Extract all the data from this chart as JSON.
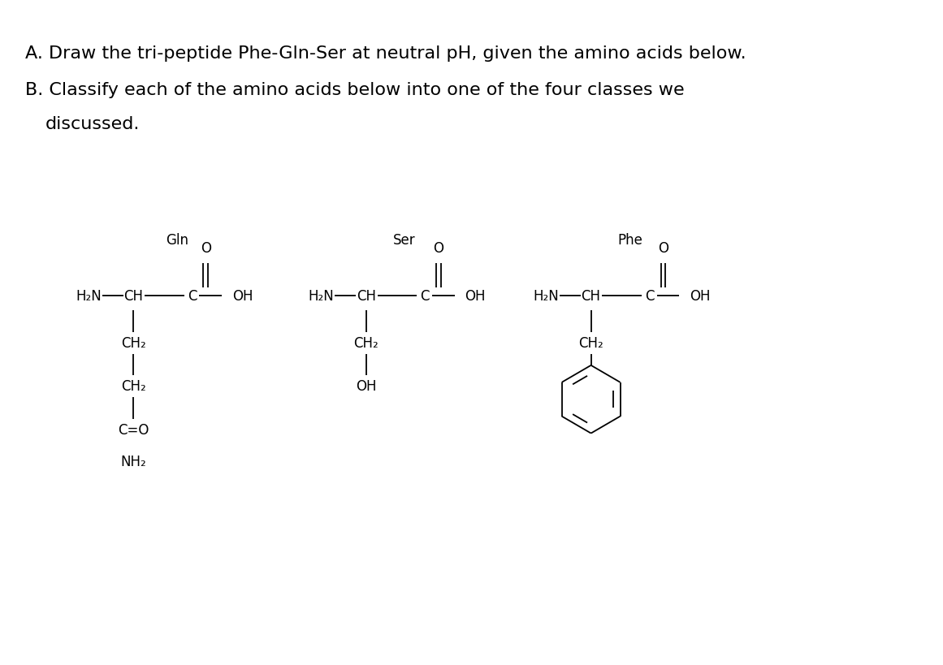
{
  "title_line1": "A. Draw the tri-peptide Phe-Gln-Ser at neutral pH, given the amino acids below.",
  "title_line2": "B. Classify each of the amino acids below into one of the four classes we",
  "title_line3": "discussed.",
  "bg_color": "#ffffff",
  "line_color": "#000000",
  "text_color": "#000000",
  "font_size_title": 16,
  "font_size_chem": 12,
  "gln_label": "Gln",
  "ser_label": "Ser",
  "phe_label": "Phe"
}
